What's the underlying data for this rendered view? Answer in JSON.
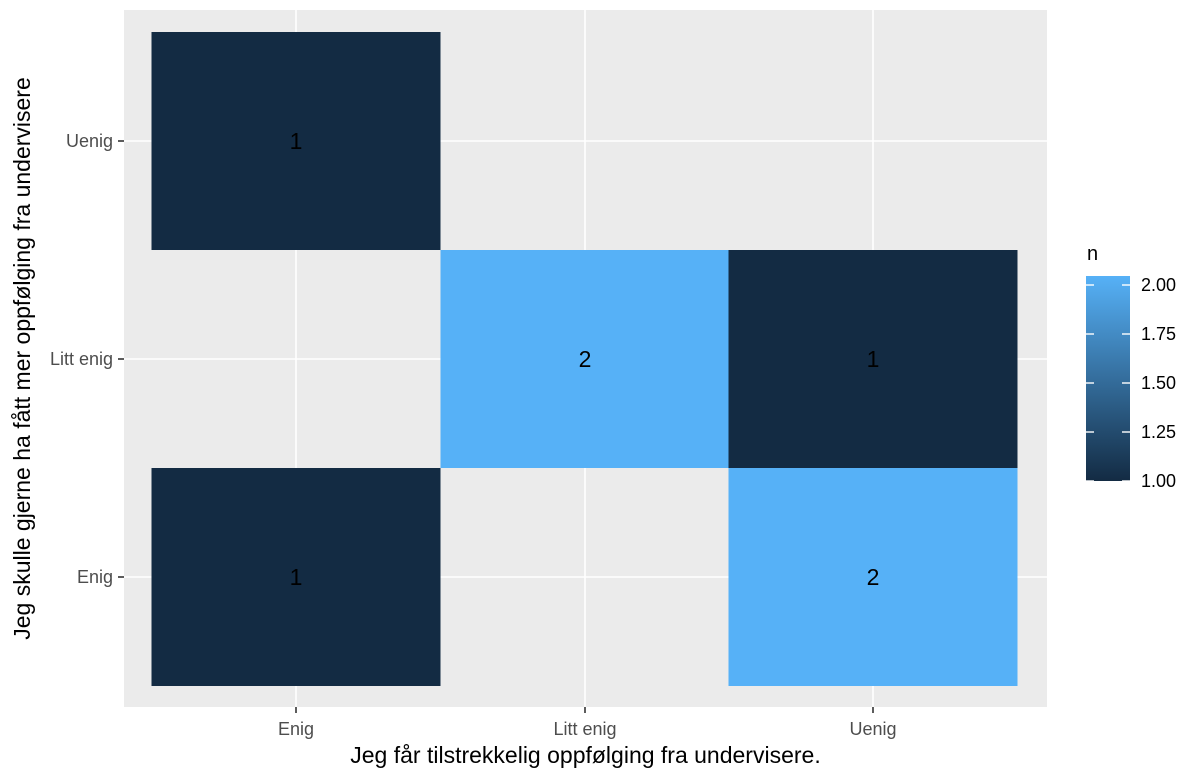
{
  "chart_data": {
    "type": "heatmap",
    "title": "",
    "xlabel": "Jeg får tilstrekkelig oppfølging fra undervisere.",
    "ylabel": "Jeg skulle gjerne ha fått mer oppfølging fra undervisere",
    "x_categories": [
      "Enig",
      "Litt enig",
      "Uenig"
    ],
    "y_categories": [
      "Enig",
      "Litt enig",
      "Uenig"
    ],
    "cells": [
      {
        "x": "Enig",
        "y": "Uenig",
        "n": 1
      },
      {
        "x": "Litt enig",
        "y": "Litt enig",
        "n": 2
      },
      {
        "x": "Uenig",
        "y": "Litt enig",
        "n": 1
      },
      {
        "x": "Enig",
        "y": "Enig",
        "n": 1
      },
      {
        "x": "Uenig",
        "y": "Enig",
        "n": 2
      }
    ],
    "legend": {
      "title": "n",
      "ticks": [
        "2.00",
        "1.75",
        "1.50",
        "1.25",
        "1.00"
      ],
      "range": [
        1,
        2
      ],
      "low_color": "#132B43",
      "high_color": "#56B1F7",
      "placement": "right"
    },
    "panel_background": "#EBEBEB",
    "grid_color": "#FFFFFF",
    "grid": true
  }
}
